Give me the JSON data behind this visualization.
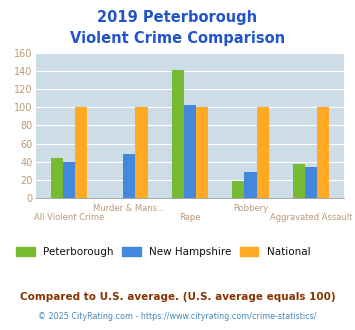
{
  "title_line1": "2019 Peterborough",
  "title_line2": "Violent Crime Comparison",
  "categories": [
    "All Violent Crime",
    "Murder & Mans...",
    "Rape",
    "Robbery",
    "Aggravated Assault"
  ],
  "cat_labels_line1": [
    "",
    "Murder & Mans...",
    "",
    "Robbery",
    ""
  ],
  "cat_labels_line2": [
    "All Violent Crime",
    "",
    "Rape",
    "",
    "Aggravated Assault"
  ],
  "series": {
    "Peterborough": [
      44,
      0,
      141,
      19,
      37
    ],
    "New Hampshire": [
      40,
      49,
      102,
      29,
      34
    ],
    "National": [
      100,
      100,
      100,
      100,
      100
    ]
  },
  "colors": {
    "Peterborough": "#77bb33",
    "New Hampshire": "#4488dd",
    "National": "#ffaa22"
  },
  "ylim": [
    0,
    160
  ],
  "yticks": [
    0,
    20,
    40,
    60,
    80,
    100,
    120,
    140,
    160
  ],
  "plot_bg": "#cddde8",
  "title_color": "#2255cc",
  "axis_label_color": "#bb9977",
  "legend_label_color": "#111111",
  "footnote1": "Compared to U.S. average. (U.S. average equals 100)",
  "footnote2": "© 2025 CityRating.com - https://www.cityrating.com/crime-statistics/",
  "footnote1_color": "#883300",
  "footnote2_color": "#4488bb"
}
